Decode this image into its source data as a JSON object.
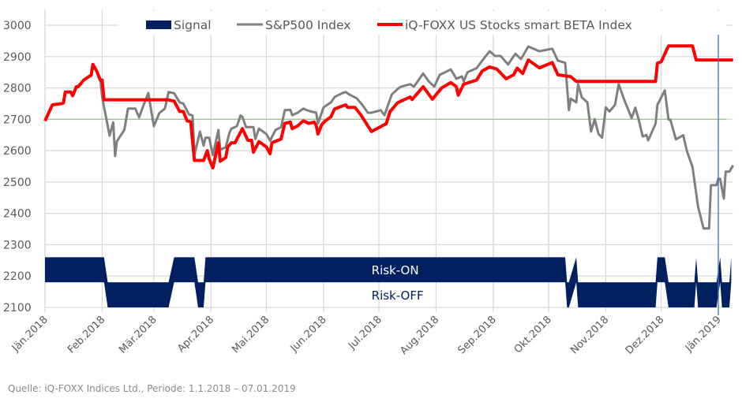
{
  "chart_data": {
    "type": "line",
    "title": "",
    "xlabel": "",
    "ylabel": "",
    "x_unit": "days since 1.1.2018",
    "xlim": [
      0,
      373
    ],
    "ylim": [
      2100,
      3000
    ],
    "yticks": [
      3000,
      2900,
      2800,
      2700,
      2600,
      2500,
      2400,
      2300,
      2200,
      2100
    ],
    "xticks": [
      {
        "day": 0,
        "label": "Jän.2018"
      },
      {
        "day": 31,
        "label": "Feb.2018"
      },
      {
        "day": 59,
        "label": "Mär.2018"
      },
      {
        "day": 90,
        "label": "Apr.2018"
      },
      {
        "day": 120,
        "label": "Mai.2018"
      },
      {
        "day": 151,
        "label": "Jun.2018"
      },
      {
        "day": 181,
        "label": "Jul.2018"
      },
      {
        "day": 212,
        "label": "Aug.2018"
      },
      {
        "day": 243,
        "label": "Sep.2018"
      },
      {
        "day": 273,
        "label": "Okt.2018"
      },
      {
        "day": 304,
        "label": "Nov.2018"
      },
      {
        "day": 334,
        "label": "Dez.2018"
      },
      {
        "day": 365,
        "label": "Jän.2019"
      }
    ],
    "grid": true,
    "legend_position": "top",
    "reference_line": {
      "value": 2700,
      "color": "#92c47d"
    },
    "marker_line": {
      "day": 365,
      "color": "#4472c4"
    },
    "legend": [
      {
        "label": "Signal",
        "kind": "area",
        "color": "#002060"
      },
      {
        "label": "S&P500 Index",
        "kind": "line",
        "color": "#7f7f7f"
      },
      {
        "label": "iQ-FOXX US Stocks smart BETA Index",
        "kind": "line",
        "color": "#ff0000"
      }
    ],
    "signal": {
      "name": "Signal",
      "on_band": [
        2180,
        2260
      ],
      "off_band": [
        2100,
        2180
      ],
      "on_label": "Risk-ON",
      "off_label": "Risk-OFF",
      "points": [
        [
          0,
          1
        ],
        [
          32,
          1
        ],
        [
          34,
          0
        ],
        [
          67,
          0
        ],
        [
          70,
          1
        ],
        [
          81,
          1
        ],
        [
          83,
          0
        ],
        [
          86,
          0
        ],
        [
          87,
          1
        ],
        [
          282,
          1
        ],
        [
          283,
          0
        ],
        [
          284,
          0
        ],
        [
          288,
          1
        ],
        [
          289,
          0
        ],
        [
          331,
          0
        ],
        [
          332,
          1
        ],
        [
          336,
          1
        ],
        [
          338,
          0
        ],
        [
          352,
          0
        ],
        [
          353,
          1
        ],
        [
          354,
          0
        ],
        [
          364,
          0
        ],
        [
          366,
          1
        ],
        [
          367,
          0
        ],
        [
          371,
          0
        ],
        [
          372,
          1
        ]
      ]
    },
    "series": [
      {
        "name": "S&P500 Index",
        "color": "#7f7f7f",
        "points": [
          [
            0,
            2695
          ],
          [
            4,
            2746
          ],
          [
            9,
            2750
          ],
          [
            10,
            2752
          ],
          [
            11,
            2787
          ],
          [
            14,
            2787
          ],
          [
            15,
            2775
          ],
          [
            17,
            2804
          ],
          [
            18,
            2804
          ],
          [
            21,
            2825
          ],
          [
            24,
            2837
          ],
          [
            25,
            2840
          ],
          [
            26,
            2875
          ],
          [
            28,
            2854
          ],
          [
            30,
            2825
          ],
          [
            31,
            2771
          ],
          [
            35,
            2648
          ],
          [
            37,
            2690
          ],
          [
            38,
            2583
          ],
          [
            39,
            2630
          ],
          [
            43,
            2666
          ],
          [
            45,
            2734
          ],
          [
            49,
            2734
          ],
          [
            51,
            2706
          ],
          [
            54,
            2754
          ],
          [
            56,
            2784
          ],
          [
            59,
            2678
          ],
          [
            62,
            2720
          ],
          [
            65,
            2734
          ],
          [
            67,
            2787
          ],
          [
            70,
            2783
          ],
          [
            73,
            2754
          ],
          [
            75,
            2750
          ],
          [
            78,
            2716
          ],
          [
            80,
            2712
          ],
          [
            81,
            2586
          ],
          [
            84,
            2661
          ],
          [
            86,
            2616
          ],
          [
            87,
            2641
          ],
          [
            89,
            2641
          ],
          [
            91,
            2586
          ],
          [
            94,
            2666
          ],
          [
            95,
            2603
          ],
          [
            98,
            2611
          ],
          [
            100,
            2657
          ],
          [
            101,
            2670
          ],
          [
            104,
            2678
          ],
          [
            106,
            2712
          ],
          [
            107,
            2708
          ],
          [
            109,
            2675
          ],
          [
            113,
            2675
          ],
          [
            114,
            2637
          ],
          [
            116,
            2670
          ],
          [
            120,
            2653
          ],
          [
            122,
            2632
          ],
          [
            125,
            2666
          ],
          [
            128,
            2675
          ],
          [
            130,
            2729
          ],
          [
            133,
            2730
          ],
          [
            134,
            2713
          ],
          [
            137,
            2721
          ],
          [
            140,
            2734
          ],
          [
            142,
            2729
          ],
          [
            144,
            2725
          ],
          [
            147,
            2721
          ],
          [
            148,
            2687
          ],
          [
            150,
            2721
          ],
          [
            151,
            2738
          ],
          [
            155,
            2754
          ],
          [
            157,
            2771
          ],
          [
            161,
            2783
          ],
          [
            163,
            2787
          ],
          [
            165,
            2779
          ],
          [
            169,
            2767
          ],
          [
            172,
            2746
          ],
          [
            175,
            2721
          ],
          [
            177,
            2721
          ],
          [
            182,
            2729
          ],
          [
            184,
            2713
          ],
          [
            188,
            2779
          ],
          [
            191,
            2796
          ],
          [
            193,
            2804
          ],
          [
            198,
            2812
          ],
          [
            200,
            2804
          ],
          [
            205,
            2846
          ],
          [
            208,
            2821
          ],
          [
            211,
            2804
          ],
          [
            214,
            2842
          ],
          [
            220,
            2859
          ],
          [
            223,
            2829
          ],
          [
            226,
            2837
          ],
          [
            227,
            2821
          ],
          [
            229,
            2850
          ],
          [
            234,
            2863
          ],
          [
            237,
            2887
          ],
          [
            241,
            2917
          ],
          [
            244,
            2902
          ],
          [
            247,
            2902
          ],
          [
            251,
            2875
          ],
          [
            255,
            2909
          ],
          [
            258,
            2892
          ],
          [
            262,
            2932
          ],
          [
            268,
            2917
          ],
          [
            275,
            2925
          ],
          [
            278,
            2887
          ],
          [
            282,
            2880
          ],
          [
            284,
            2729
          ],
          [
            285,
            2766
          ],
          [
            288,
            2754
          ],
          [
            289,
            2812
          ],
          [
            291,
            2770
          ],
          [
            294,
            2754
          ],
          [
            296,
            2661
          ],
          [
            298,
            2700
          ],
          [
            300,
            2654
          ],
          [
            302,
            2641
          ],
          [
            304,
            2738
          ],
          [
            306,
            2725
          ],
          [
            309,
            2746
          ],
          [
            311,
            2812
          ],
          [
            314,
            2762
          ],
          [
            318,
            2704
          ],
          [
            320,
            2737
          ],
          [
            322,
            2695
          ],
          [
            324,
            2645
          ],
          [
            326,
            2650
          ],
          [
            327,
            2633
          ],
          [
            331,
            2686
          ],
          [
            332,
            2746
          ],
          [
            336,
            2792
          ],
          [
            338,
            2699
          ],
          [
            339,
            2699
          ],
          [
            342,
            2636
          ],
          [
            346,
            2649
          ],
          [
            348,
            2598
          ],
          [
            351,
            2548
          ],
          [
            354,
            2422
          ],
          [
            357,
            2352
          ],
          [
            360,
            2352
          ],
          [
            361,
            2490
          ],
          [
            364,
            2490
          ],
          [
            365,
            2510
          ],
          [
            366,
            2510
          ],
          [
            368,
            2447
          ],
          [
            369,
            2533
          ],
          [
            371,
            2533
          ],
          [
            373,
            2553
          ]
        ]
      },
      {
        "name": "iQ-FOXX US Stocks smart BETA Index",
        "color": "#ff0000",
        "points": [
          [
            0,
            2695
          ],
          [
            4,
            2746
          ],
          [
            9,
            2750
          ],
          [
            10,
            2752
          ],
          [
            11,
            2787
          ],
          [
            14,
            2787
          ],
          [
            15,
            2775
          ],
          [
            17,
            2804
          ],
          [
            18,
            2804
          ],
          [
            21,
            2825
          ],
          [
            24,
            2837
          ],
          [
            25,
            2840
          ],
          [
            26,
            2875
          ],
          [
            28,
            2854
          ],
          [
            30,
            2825
          ],
          [
            31,
            2825
          ],
          [
            32,
            2762
          ],
          [
            67,
            2762
          ],
          [
            70,
            2758
          ],
          [
            73,
            2725
          ],
          [
            75,
            2725
          ],
          [
            77,
            2695
          ],
          [
            79,
            2692
          ],
          [
            81,
            2569
          ],
          [
            86,
            2569
          ],
          [
            88,
            2600
          ],
          [
            89,
            2574
          ],
          [
            91,
            2545
          ],
          [
            94,
            2625
          ],
          [
            95,
            2566
          ],
          [
            98,
            2578
          ],
          [
            99,
            2611
          ],
          [
            101,
            2625
          ],
          [
            103,
            2625
          ],
          [
            107,
            2670
          ],
          [
            110,
            2633
          ],
          [
            112,
            2633
          ],
          [
            113,
            2595
          ],
          [
            116,
            2629
          ],
          [
            120,
            2612
          ],
          [
            122,
            2590
          ],
          [
            123,
            2625
          ],
          [
            128,
            2637
          ],
          [
            130,
            2687
          ],
          [
            133,
            2691
          ],
          [
            134,
            2670
          ],
          [
            137,
            2679
          ],
          [
            140,
            2695
          ],
          [
            143,
            2687
          ],
          [
            146,
            2691
          ],
          [
            147,
            2680
          ],
          [
            148,
            2653
          ],
          [
            150,
            2683
          ],
          [
            152,
            2695
          ],
          [
            155,
            2708
          ],
          [
            157,
            2733
          ],
          [
            161,
            2742
          ],
          [
            163,
            2746
          ],
          [
            164,
            2738
          ],
          [
            168,
            2738
          ],
          [
            171,
            2716
          ],
          [
            175,
            2679
          ],
          [
            177,
            2661
          ],
          [
            185,
            2686
          ],
          [
            187,
            2724
          ],
          [
            191,
            2752
          ],
          [
            193,
            2758
          ],
          [
            198,
            2771
          ],
          [
            199,
            2763
          ],
          [
            205,
            2804
          ],
          [
            210,
            2764
          ],
          [
            215,
            2800
          ],
          [
            220,
            2817
          ],
          [
            223,
            2804
          ],
          [
            224,
            2777
          ],
          [
            227,
            2812
          ],
          [
            234,
            2825
          ],
          [
            237,
            2854
          ],
          [
            241,
            2867
          ],
          [
            245,
            2860
          ],
          [
            250,
            2829
          ],
          [
            254,
            2842
          ],
          [
            256,
            2863
          ],
          [
            259,
            2846
          ],
          [
            262,
            2889
          ],
          [
            268,
            2864
          ],
          [
            275,
            2881
          ],
          [
            278,
            2842
          ],
          [
            285,
            2836
          ],
          [
            288,
            2821
          ],
          [
            331,
            2821
          ],
          [
            332,
            2879
          ],
          [
            334,
            2883
          ],
          [
            338,
            2934
          ],
          [
            351,
            2934
          ],
          [
            353,
            2889
          ],
          [
            373,
            2889
          ]
        ]
      }
    ]
  },
  "source": "Quelle: iQ-FOXX Indices Ltd., Periode: 1.1.2018 – 07.01.2019"
}
